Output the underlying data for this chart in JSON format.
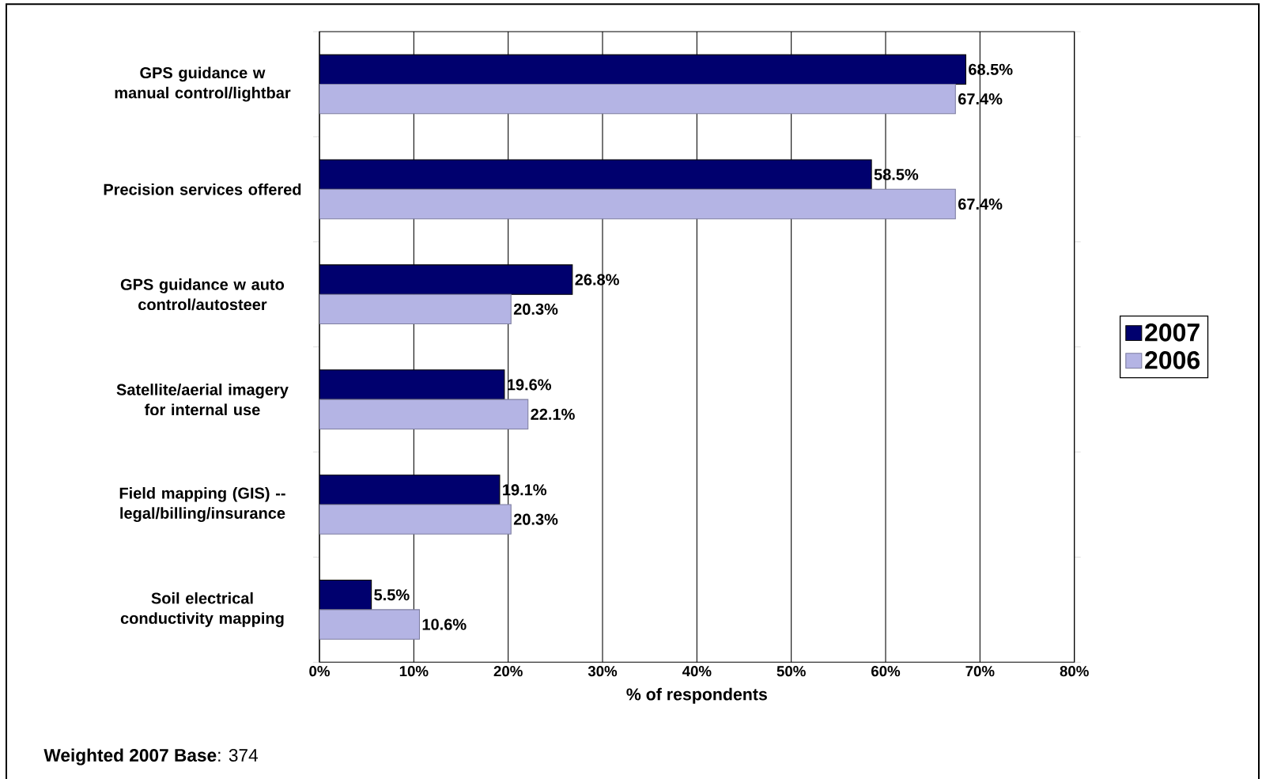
{
  "chart_data": {
    "type": "bar",
    "orientation": "horizontal",
    "categories": [
      "GPS guidance w manual control/lightbar",
      "Precision services offered",
      "GPS guidance w auto control/autosteer",
      "Satellite/aerial imagery for internal use",
      "Field mapping (GIS) -- legal/billing/insurance",
      "Soil electrical conductivity mapping"
    ],
    "series": [
      {
        "name": "2007",
        "color": "#00006e",
        "values": [
          68.5,
          58.5,
          26.8,
          19.6,
          19.1,
          5.5
        ],
        "value_labels": [
          "68.5%",
          "58.5%",
          "26.8%",
          "19.6%",
          "19.1%",
          "5.5%"
        ]
      },
      {
        "name": "2006",
        "color": "#b4b4e4",
        "values": [
          67.4,
          67.4,
          20.3,
          22.1,
          20.3,
          10.6
        ],
        "value_labels": [
          "67.4%",
          "67.4%",
          "20.3%",
          "22.1%",
          "20.3%",
          "10.6%"
        ]
      }
    ],
    "xlabel": "% of respondents",
    "xlim": [
      0,
      80
    ],
    "xticks": [
      {
        "value": 0,
        "label": "0%"
      },
      {
        "value": 10,
        "label": "10%"
      },
      {
        "value": 20,
        "label": "20%"
      },
      {
        "value": 30,
        "label": "30%"
      },
      {
        "value": 40,
        "label": "40%"
      },
      {
        "value": 50,
        "label": "50%"
      },
      {
        "value": 60,
        "label": "60%"
      },
      {
        "value": 70,
        "label": "70%"
      },
      {
        "value": 80,
        "label": "80%"
      }
    ],
    "grid": "x",
    "legend": "right",
    "annotations": [
      "**Weighted 2007 Base**:  374"
    ]
  }
}
